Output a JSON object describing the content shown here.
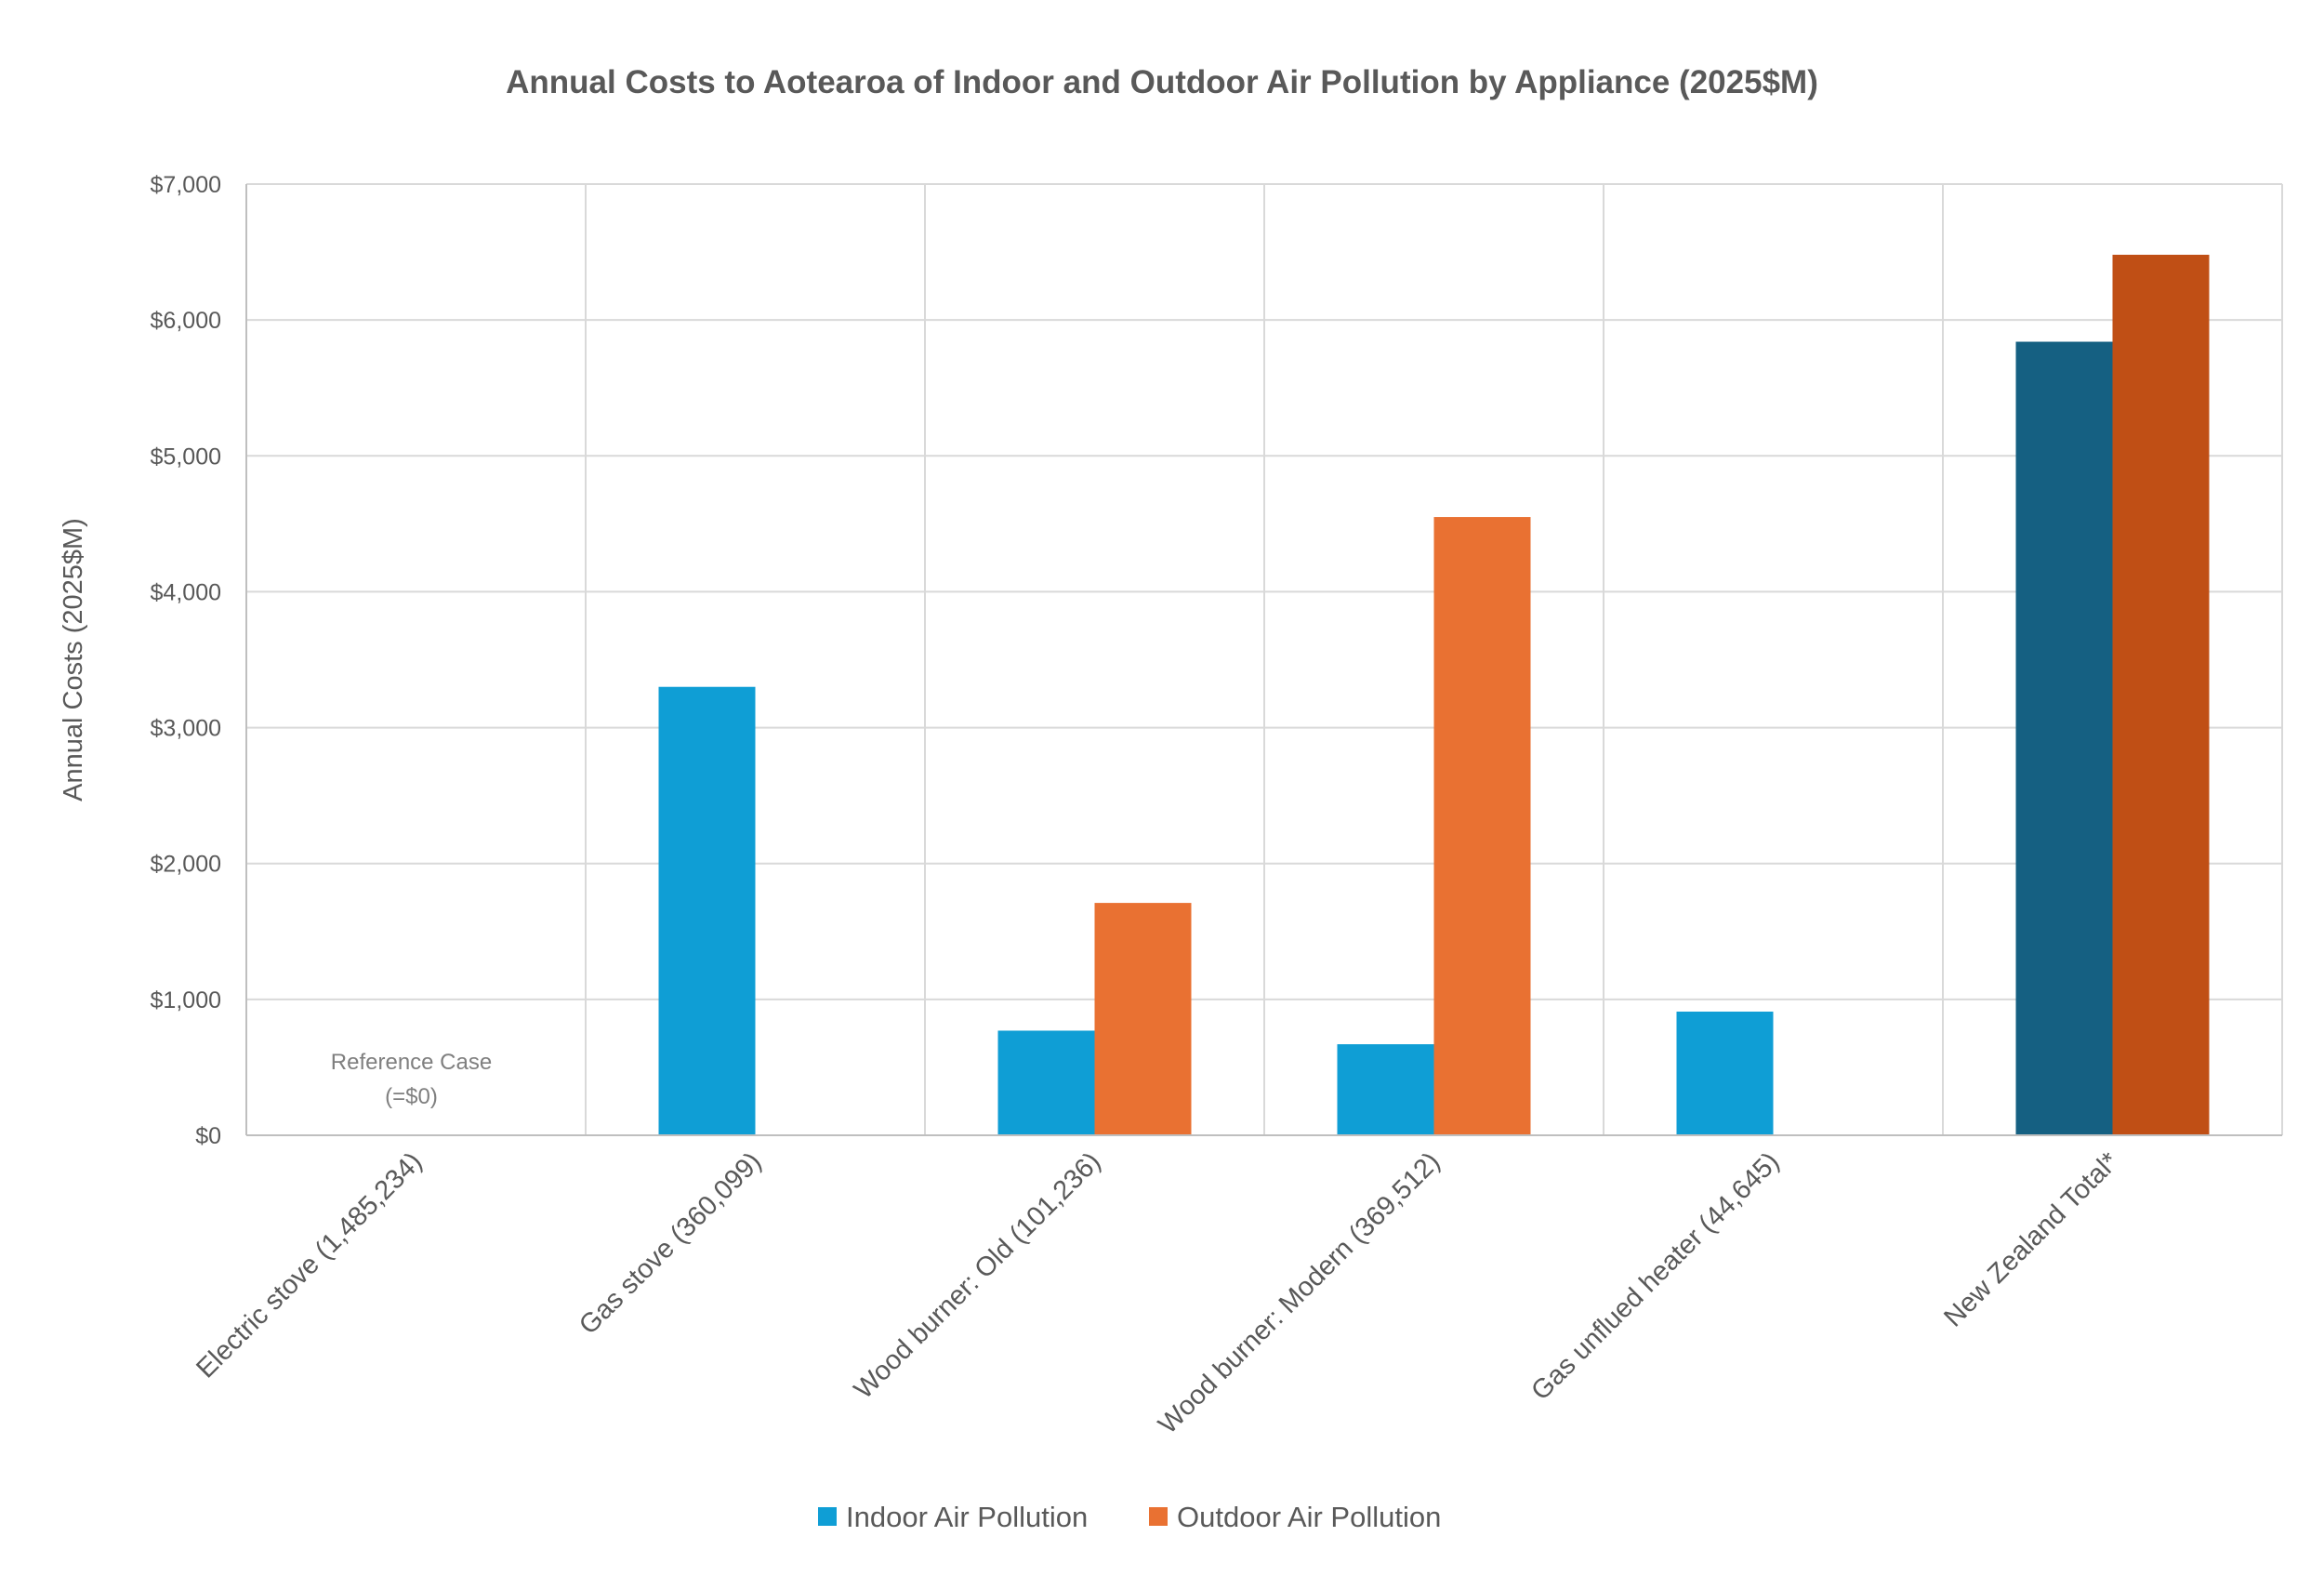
{
  "chart_data": {
    "type": "bar",
    "title": "Annual Costs to Aotearoa of Indoor and Outdoor Air Pollution by Appliance (2025$M)",
    "xlabel": "",
    "ylabel": "Annual Costs (2025$M)",
    "ylim": [
      0,
      7000
    ],
    "ytick_values": [
      0,
      1000,
      2000,
      3000,
      4000,
      5000,
      6000,
      7000
    ],
    "ytick_labels": [
      "$0",
      "$1,000",
      "$2,000",
      "$3,000",
      "$4,000",
      "$5,000",
      "$6,000",
      "$7,000"
    ],
    "grid": true,
    "legend_position": "bottom",
    "categories": [
      "Electric stove (1,485,234)",
      "Gas stove (360,099)",
      "Wood burner: Old (101,236)",
      "Wood burner: Modern (369,512)",
      "Gas unflued heater (44,645)",
      "New Zealand Total*"
    ],
    "series": [
      {
        "name": "Indoor Air Pollution",
        "color": "#0f9ed5",
        "values": [
          0,
          3300,
          770,
          670,
          910,
          5840
        ]
      },
      {
        "name": "Outdoor Air Pollution",
        "color": "#e97132",
        "values": [
          0,
          0,
          1710,
          4550,
          0,
          6480
        ]
      }
    ],
    "highlight_colors": {
      "Indoor Air Pollution": "#156082",
      "Outdoor Air Pollution": "#c04f15"
    },
    "annotations": [
      {
        "category": "Electric stove (1,485,234)",
        "lines": [
          "Reference Case",
          "(=$0)"
        ]
      }
    ]
  }
}
